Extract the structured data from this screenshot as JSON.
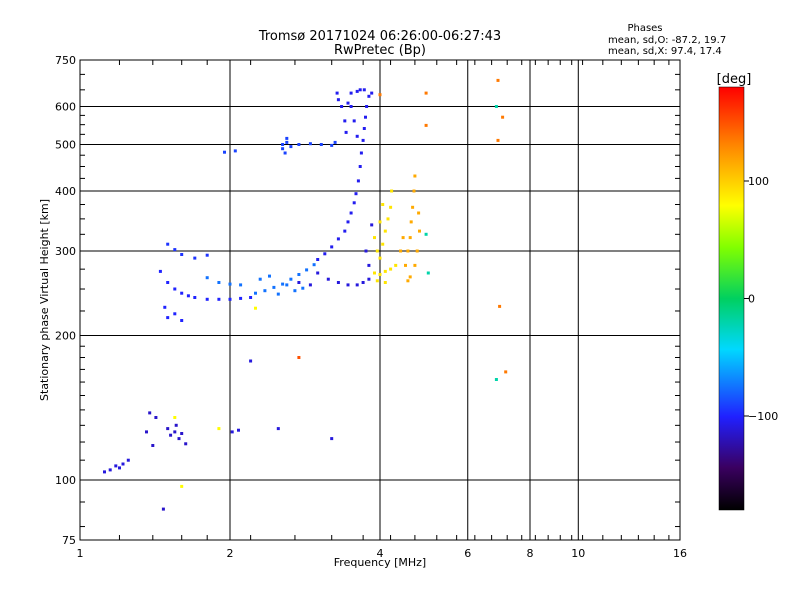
{
  "chart_data": {
    "type": "scatter",
    "title": "Tromsø 20171024 06:26:00-06:27:43",
    "subtitle": "RwPretec (Bp)",
    "xlabel": "Frequency [MHz]",
    "ylabel": "Stationary phase Virtual Height [km]",
    "xscale": "log",
    "yscale": "log",
    "xlim": [
      1,
      16
    ],
    "ylim": [
      75,
      750
    ],
    "xticks": [
      1,
      2,
      4,
      6,
      8,
      10,
      16
    ],
    "xtick_labels": [
      "1",
      "2",
      "4",
      "6",
      "8",
      "10",
      "16"
    ],
    "yticks": [
      75,
      100,
      200,
      300,
      400,
      500,
      600,
      750
    ],
    "ytick_labels": [
      "75",
      "100",
      "200",
      "300",
      "400",
      "500",
      "600",
      "750"
    ],
    "phase_info": {
      "title": "Phases",
      "line_o": "mean, sd,O: -87.2, 19.7",
      "line_x": "mean, sd,X:  97.4, 17.4"
    },
    "colorbar": {
      "label": "[deg]",
      "range": [
        -180,
        180
      ],
      "ticks": [
        100,
        0,
        -100
      ],
      "tick_labels": [
        "100",
        "0",
        "−100"
      ]
    },
    "series": [
      {
        "name": "lower-trace",
        "phase": -110,
        "points": [
          [
            1.12,
            104
          ],
          [
            1.15,
            105
          ],
          [
            1.18,
            107
          ],
          [
            1.22,
            108
          ],
          [
            1.25,
            110
          ],
          [
            1.2,
            106
          ]
        ]
      },
      {
        "name": "scatter-low-1",
        "phase": -115,
        "points": [
          [
            1.38,
            138
          ],
          [
            1.42,
            135
          ],
          [
            1.36,
            126
          ],
          [
            1.4,
            118
          ],
          [
            1.5,
            128
          ],
          [
            1.55,
            126
          ],
          [
            1.6,
            125
          ],
          [
            1.58,
            122
          ],
          [
            1.63,
            119
          ],
          [
            1.52,
            124
          ],
          [
            1.56,
            130
          ],
          [
            1.47,
            87
          ]
        ]
      },
      {
        "name": "scatter-low-2",
        "phase": -110,
        "points": [
          [
            2.02,
            126
          ],
          [
            2.08,
            127
          ],
          [
            2.2,
            177
          ],
          [
            2.5,
            128
          ],
          [
            3.2,
            122
          ]
        ]
      },
      {
        "name": "scatter-low-misc",
        "phase": 80,
        "points": [
          [
            1.6,
            97
          ],
          [
            1.9,
            128
          ],
          [
            1.55,
            135
          ],
          [
            2.25,
            228
          ]
        ]
      },
      {
        "name": "scatter-low-red",
        "phase": 150,
        "points": [
          [
            2.75,
            180
          ]
        ]
      },
      {
        "name": "o-trace-low",
        "phase": -100,
        "points": [
          [
            1.45,
            272
          ],
          [
            1.5,
            258
          ],
          [
            1.55,
            250
          ],
          [
            1.6,
            245
          ],
          [
            1.65,
            242
          ],
          [
            1.7,
            240
          ],
          [
            1.8,
            238
          ],
          [
            1.9,
            238
          ],
          [
            2.0,
            238
          ],
          [
            2.1,
            239
          ],
          [
            2.2,
            240
          ],
          [
            1.5,
            218
          ],
          [
            1.55,
            222
          ],
          [
            1.6,
            215
          ],
          [
            1.48,
            229
          ]
        ]
      },
      {
        "name": "o-trace-mid",
        "phase": -75,
        "points": [
          [
            2.25,
            245
          ],
          [
            2.35,
            248
          ],
          [
            2.45,
            252
          ],
          [
            2.55,
            256
          ],
          [
            2.65,
            262
          ],
          [
            2.75,
            268
          ],
          [
            2.85,
            274
          ],
          [
            2.95,
            281
          ],
          [
            2.3,
            262
          ],
          [
            2.4,
            266
          ],
          [
            2.6,
            255
          ],
          [
            2.5,
            244
          ],
          [
            2.7,
            248
          ],
          [
            2.8,
            251
          ],
          [
            1.8,
            264
          ],
          [
            1.9,
            258
          ],
          [
            2.0,
            256
          ],
          [
            2.1,
            255
          ]
        ]
      },
      {
        "name": "o-trace-upper",
        "phase": -105,
        "points": [
          [
            3.0,
            288
          ],
          [
            3.1,
            296
          ],
          [
            3.2,
            306
          ],
          [
            3.3,
            318
          ],
          [
            3.4,
            330
          ],
          [
            3.45,
            345
          ],
          [
            3.5,
            360
          ],
          [
            3.55,
            378
          ],
          [
            3.58,
            395
          ],
          [
            3.62,
            420
          ],
          [
            3.65,
            450
          ],
          [
            3.67,
            480
          ],
          [
            3.7,
            510
          ],
          [
            3.72,
            540
          ],
          [
            3.74,
            570
          ],
          [
            3.76,
            600
          ],
          [
            3.8,
            630
          ],
          [
            3.85,
            640
          ],
          [
            3.5,
            600
          ],
          [
            3.55,
            560
          ],
          [
            3.6,
            520
          ]
        ]
      },
      {
        "name": "o-trace-band",
        "phase": -110,
        "points": [
          [
            3.0,
            270
          ],
          [
            3.15,
            262
          ],
          [
            3.3,
            258
          ],
          [
            3.45,
            255
          ],
          [
            3.6,
            255
          ],
          [
            3.7,
            258
          ],
          [
            3.8,
            262
          ],
          [
            2.9,
            255
          ],
          [
            2.75,
            258
          ],
          [
            3.8,
            280
          ],
          [
            3.75,
            300
          ],
          [
            3.85,
            340
          ]
        ]
      },
      {
        "name": "o-trace-high",
        "phase": -105,
        "points": [
          [
            3.35,
            600
          ],
          [
            3.3,
            620
          ],
          [
            3.28,
            640
          ],
          [
            3.4,
            560
          ],
          [
            3.42,
            530
          ],
          [
            3.5,
            640
          ],
          [
            3.6,
            645
          ],
          [
            3.65,
            650
          ],
          [
            3.72,
            650
          ],
          [
            3.45,
            610
          ]
        ]
      },
      {
        "name": "o-trace-500",
        "phase": -90,
        "points": [
          [
            2.55,
            500
          ],
          [
            2.6,
            505
          ],
          [
            2.65,
            495
          ],
          [
            2.75,
            500
          ],
          [
            2.9,
            502
          ],
          [
            3.05,
            500
          ],
          [
            3.2,
            498
          ],
          [
            3.25,
            505
          ],
          [
            2.55,
            490
          ],
          [
            2.6,
            515
          ],
          [
            2.58,
            480
          ],
          [
            1.95,
            482
          ],
          [
            2.05,
            485
          ]
        ]
      },
      {
        "name": "o-trace-300",
        "phase": -95,
        "points": [
          [
            1.5,
            310
          ],
          [
            1.55,
            302
          ],
          [
            1.6,
            295
          ],
          [
            1.7,
            290
          ],
          [
            1.8,
            294
          ]
        ]
      },
      {
        "name": "x-trace-yellow",
        "phase": 90,
        "points": [
          [
            3.9,
            270
          ],
          [
            4.0,
            268
          ],
          [
            4.1,
            272
          ],
          [
            4.2,
            275
          ],
          [
            4.3,
            280
          ],
          [
            4.0,
            290
          ],
          [
            4.05,
            310
          ],
          [
            4.1,
            330
          ],
          [
            4.15,
            350
          ],
          [
            4.2,
            370
          ],
          [
            4.22,
            400
          ],
          [
            3.95,
            300
          ],
          [
            3.9,
            320
          ],
          [
            4.0,
            345
          ],
          [
            4.05,
            375
          ],
          [
            3.95,
            260
          ],
          [
            4.1,
            258
          ]
        ]
      },
      {
        "name": "x-trace-orange",
        "phase": 115,
        "points": [
          [
            4.5,
            280
          ],
          [
            4.55,
            300
          ],
          [
            4.6,
            320
          ],
          [
            4.62,
            345
          ],
          [
            4.65,
            370
          ],
          [
            4.68,
            400
          ],
          [
            4.7,
            430
          ],
          [
            4.55,
            260
          ],
          [
            4.6,
            265
          ],
          [
            4.7,
            280
          ],
          [
            4.75,
            300
          ],
          [
            4.8,
            330
          ],
          [
            4.78,
            360
          ],
          [
            4.4,
            300
          ],
          [
            4.45,
            320
          ]
        ]
      },
      {
        "name": "x-trace-isolated",
        "phase": 135,
        "points": [
          [
            4.95,
            640
          ],
          [
            6.9,
            680
          ],
          [
            7.05,
            570
          ],
          [
            6.95,
            230
          ],
          [
            7.15,
            168
          ],
          [
            4.0,
            635
          ],
          [
            4.95,
            548
          ],
          [
            6.9,
            510
          ]
        ]
      },
      {
        "name": "x-trace-misc",
        "phase": -20,
        "points": [
          [
            4.95,
            325
          ],
          [
            6.85,
            600
          ],
          [
            6.85,
            162
          ],
          [
            5.0,
            270
          ]
        ]
      }
    ]
  }
}
